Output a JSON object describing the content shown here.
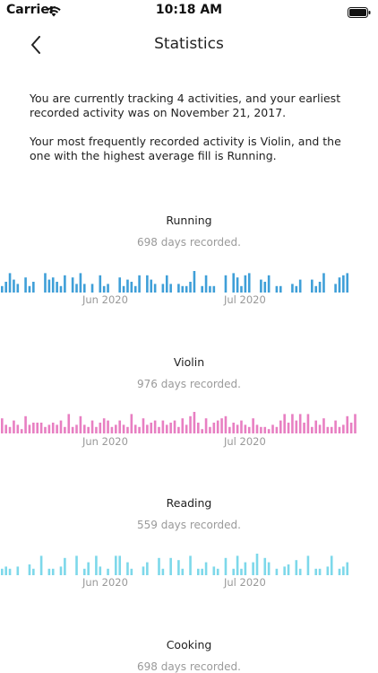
{
  "status_bar": {
    "carrier": "Carrier",
    "time": "10:18 AM"
  },
  "nav": {
    "title": "Statistics"
  },
  "summary": {
    "line1": "You are currently tracking 4 activities, and your earliest recorded activity was on November 21, 2017.",
    "line2": "Your most frequently recorded activity is Violin, and the one with the highest average fill is Running."
  },
  "sections": [
    {
      "title": "Running",
      "subtitle": "698 days recorded.",
      "color": "#3f9fd8",
      "months": [
        "Jun 2020",
        "Jul 2020"
      ],
      "chart_data": {
        "type": "bar",
        "values": [
          0.3,
          0.5,
          0.9,
          0.6,
          0.4,
          0,
          0.7,
          0.3,
          0.5,
          0,
          0,
          0.9,
          0.6,
          0.7,
          0.5,
          0.3,
          0.8,
          0,
          0.7,
          0.4,
          0.9,
          0.4,
          0,
          0.4,
          0,
          0.8,
          0.3,
          0.4,
          0,
          0,
          0.7,
          0.3,
          0.6,
          0.5,
          0.3,
          0.8,
          0,
          0.8,
          0.6,
          0.4,
          0,
          0.4,
          0.8,
          0.4,
          0,
          0.4,
          0.3,
          0.3,
          0.5,
          1.0,
          0,
          0.3,
          0.8,
          0.3,
          0.3,
          0,
          0,
          0.8,
          0,
          0.9,
          0.7,
          0.3,
          0.8,
          0.9,
          0,
          0,
          0.6,
          0.5,
          0.8,
          0,
          0.3,
          0.3,
          0,
          0,
          0.4,
          0.3,
          0.6,
          0,
          0,
          0.6,
          0.3,
          0.5,
          0.9,
          0,
          0,
          0.4,
          0.7,
          0.8,
          0.9
        ]
      }
    },
    {
      "title": "Violin",
      "subtitle": "976 days recorded.",
      "color": "#e87fc2",
      "months": [
        "Jun 2020",
        "Jul 2020"
      ],
      "chart_data": {
        "type": "bar",
        "values": [
          0.7,
          0.4,
          0.3,
          0.6,
          0.4,
          0.2,
          0.8,
          0.4,
          0.5,
          0.5,
          0.5,
          0.3,
          0.4,
          0.5,
          0.4,
          0.6,
          0.3,
          0.9,
          0.3,
          0.4,
          0.8,
          0.4,
          0.3,
          0.6,
          0.3,
          0.5,
          0.7,
          0.6,
          0.3,
          0.4,
          0.6,
          0.4,
          0.3,
          0.9,
          0.4,
          0.3,
          0.7,
          0.4,
          0.5,
          0.6,
          0.3,
          0.6,
          0.4,
          0.5,
          0.6,
          0.3,
          0.7,
          0.4,
          0.8,
          1.0,
          0.5,
          0.2,
          0.7,
          0.3,
          0.5,
          0.6,
          0.7,
          0.8,
          0.3,
          0.5,
          0.4,
          0.6,
          0.4,
          0.3,
          0.7,
          0.4,
          0.3,
          0.3,
          0.2,
          0.4,
          0.3,
          0.6,
          0.9,
          0.5,
          0.9,
          0.6,
          0.9,
          0.5,
          0.9,
          0.3,
          0.6,
          0.4,
          0.7,
          0.3,
          0.3,
          0.6,
          0.3,
          0.4,
          0.8,
          0.5,
          0.9
        ]
      }
    },
    {
      "title": "Reading",
      "subtitle": "559 days recorded.",
      "color": "#7dd8ea",
      "months": [
        "Jun 2020",
        "Jul 2020"
      ],
      "chart_data": {
        "type": "bar",
        "values": [
          0.3,
          0.4,
          0.3,
          0,
          0.4,
          0,
          0,
          0.5,
          0.3,
          0,
          0.9,
          0,
          0.3,
          0.3,
          0,
          0.4,
          0.8,
          0,
          0,
          0.9,
          0,
          0.3,
          0.6,
          0,
          0.9,
          0.4,
          0,
          0.3,
          0,
          0.9,
          0.9,
          0,
          0.6,
          0.3,
          0,
          0,
          0.4,
          0.6,
          0,
          0,
          0.8,
          0.3,
          0,
          0.8,
          0,
          0.7,
          0.3,
          0,
          0.9,
          0,
          0.3,
          0.3,
          0.6,
          0,
          0.4,
          0.3,
          0,
          0.8,
          0,
          0.3,
          0.9,
          0.3,
          0.6,
          0,
          0.6,
          1.0,
          0,
          0.8,
          0.6,
          0,
          0.3,
          0,
          0.4,
          0.5,
          0,
          0.7,
          0.3,
          0,
          0.9,
          0,
          0.3,
          0.3,
          0,
          0.4,
          0.9,
          0,
          0.3,
          0.4,
          0.6
        ]
      }
    },
    {
      "title": "Cooking",
      "subtitle": "698 days recorded."
    }
  ]
}
